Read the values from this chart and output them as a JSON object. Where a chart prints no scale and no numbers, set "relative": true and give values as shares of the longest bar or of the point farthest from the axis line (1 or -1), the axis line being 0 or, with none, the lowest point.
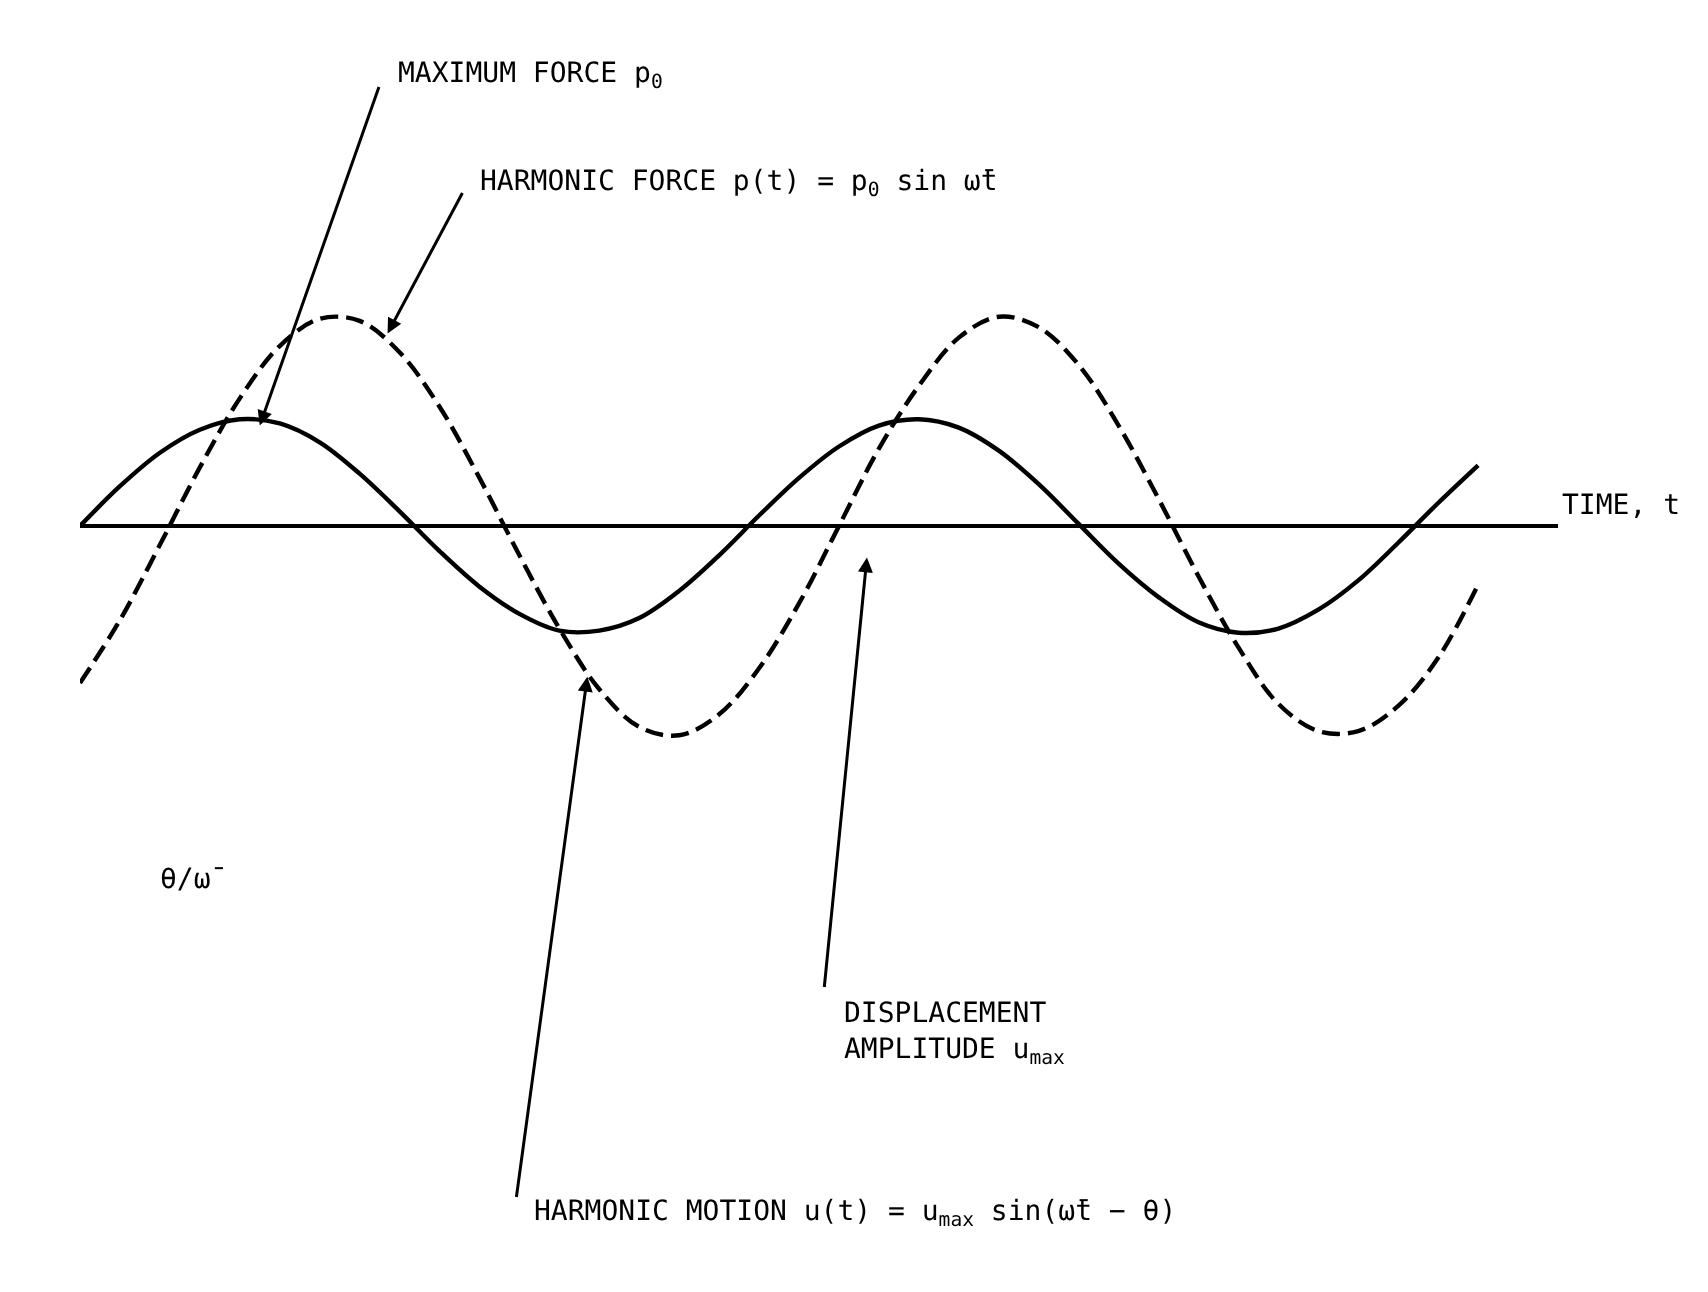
{
  "chart_data": {
    "type": "line",
    "relative": true,
    "xlabel": "TIME, t",
    "categories": [
      null,
      null,
      null,
      null,
      null,
      null,
      null,
      null,
      null,
      null,
      null,
      null,
      null,
      null,
      null,
      null,
      null,
      null,
      null,
      null,
      null,
      null,
      null,
      null,
      null,
      null,
      null,
      null,
      null,
      null,
      null,
      null,
      null,
      null,
      null,
      null
    ],
    "series": [
      {
        "color": "#000000",
        "line_style": "solid",
        "values": [
          0,
          0.19,
          0.35,
          0.46,
          0.51,
          0.49,
          0.4,
          0.25,
          0.07,
          -0.12,
          -0.29,
          -0.42,
          -0.5,
          -0.5,
          -0.44,
          -0.31,
          -0.14,
          0.05,
          0.23,
          0.38,
          0.48,
          0.51,
          0.47,
          0.36,
          0.2,
          0.01,
          -0.18,
          -0.34,
          -0.46,
          -0.51,
          -0.49,
          -0.4,
          -0.26,
          -0.08,
          0.11,
          0.29
        ]
      },
      {
        "color": "#000000",
        "line_style": "dashed",
        "values": [
          -0.75,
          -0.45,
          -0.09,
          0.28,
          0.61,
          0.86,
          0.99,
          0.98,
          0.83,
          0.57,
          0.23,
          -0.14,
          -0.49,
          -0.78,
          -0.96,
          -1.0,
          -0.9,
          -0.68,
          -0.37,
          0,
          0.37,
          0.67,
          0.9,
          1.0,
          0.95,
          0.77,
          0.48,
          0.13,
          -0.24,
          -0.58,
          -0.85,
          -0.98,
          -0.98,
          -0.86,
          -0.63,
          -0.28
        ]
      }
    ],
    "annotations": [
      "MAXIMUM FORCE p$_{0}$",
      "HARMONIC FORCE p(t) = p$_{0}$ sin ω̄t",
      "DISPLACEMENT\nAMPLITUDE u$_{max}$",
      "HARMONIC MOTION u(t) = u$_{max}$ sin(ω̄t − θ)",
      "θ/ω̄"
    ]
  }
}
